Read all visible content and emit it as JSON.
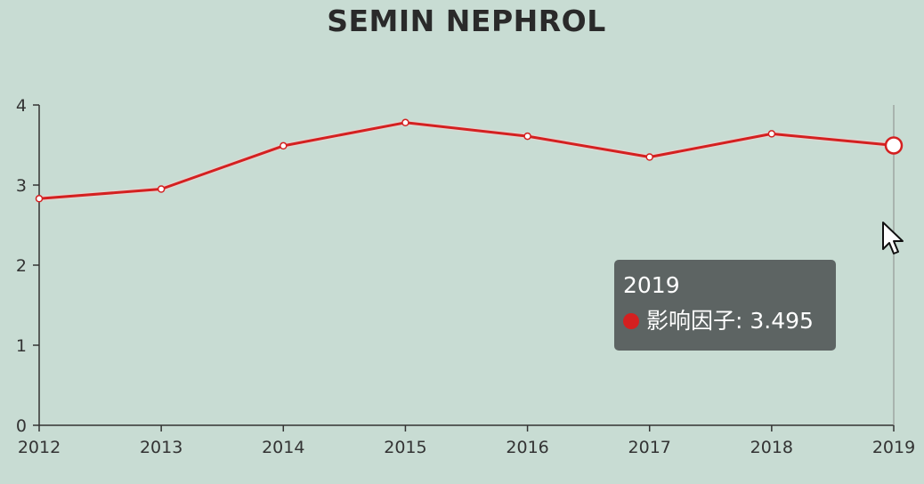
{
  "chart_data": {
    "type": "line",
    "title": "SEMIN NEPHROL",
    "x": [
      "2012",
      "2013",
      "2014",
      "2015",
      "2016",
      "2017",
      "2018",
      "2019"
    ],
    "series": [
      {
        "name": "影响因子",
        "values": [
          2.83,
          2.95,
          3.49,
          3.78,
          3.61,
          3.35,
          3.64,
          3.495
        ]
      }
    ],
    "y_ticks": [
      "0",
      "1",
      "2",
      "3",
      "4"
    ],
    "ylim": [
      0,
      4
    ],
    "grid": false,
    "line_color": "#d42020"
  },
  "tooltip": {
    "title": "2019",
    "series_name": "影响因子",
    "value": "3.495",
    "text": "影响因子: 3.495"
  },
  "colors": {
    "background": "#c8dcd3",
    "axis": "#333333",
    "line": "#d42020"
  },
  "icons": {
    "cursor": "arrow-cursor-icon"
  }
}
